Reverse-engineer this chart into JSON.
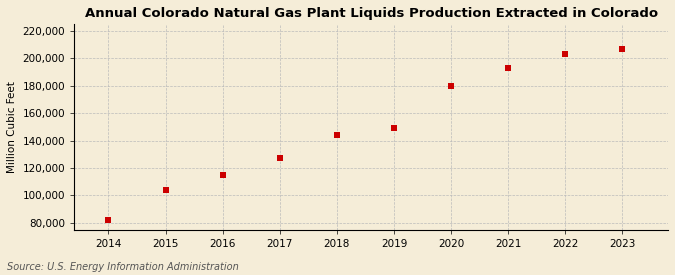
{
  "title": "Annual Colorado Natural Gas Plant Liquids Production Extracted in Colorado",
  "ylabel": "Million Cubic Feet",
  "source": "Source: U.S. Energy Information Administration",
  "years": [
    2014,
    2015,
    2016,
    2017,
    2018,
    2019,
    2020,
    2021,
    2022,
    2023
  ],
  "values": [
    82000,
    104000,
    115000,
    127000,
    144000,
    149000,
    180000,
    193000,
    203000,
    207000
  ],
  "marker_color": "#cc0000",
  "marker": "s",
  "marker_size": 4,
  "ylim": [
    75000,
    225000
  ],
  "yticks": [
    80000,
    100000,
    120000,
    140000,
    160000,
    180000,
    200000,
    220000
  ],
  "xlim": [
    2013.4,
    2023.8
  ],
  "background_color": "#f5edd8",
  "grid_color": "#bbbbbb",
  "title_fontsize": 9.5,
  "label_fontsize": 7.5,
  "tick_fontsize": 7.5,
  "source_fontsize": 7
}
